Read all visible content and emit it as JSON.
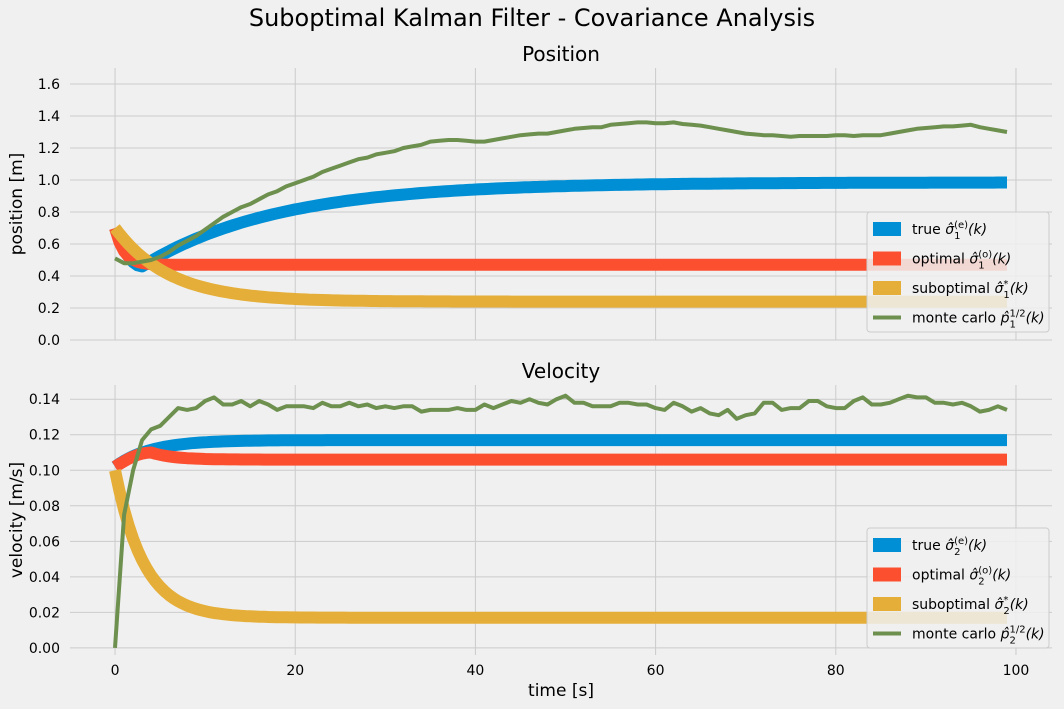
{
  "figure": {
    "suptitle": "Suboptimal Kalman Filter - Covariance Analysis"
  },
  "chart_data": [
    {
      "type": "line",
      "title": "Position",
      "xlabel": "",
      "ylabel": "position [m]",
      "xlim": [
        -5,
        104
      ],
      "ylim": [
        0,
        1.7
      ],
      "x_ticks": [
        0,
        20,
        40,
        60,
        80,
        100
      ],
      "x_tick_labels": [
        "",
        "",
        "",
        "",
        "",
        ""
      ],
      "y_ticks": [
        0.0,
        0.2,
        0.4,
        0.6,
        0.8,
        1.0,
        1.2,
        1.4,
        1.6
      ],
      "y_tick_labels": [
        "0.0",
        "0.2",
        "0.4",
        "0.6",
        "0.8",
        "1.0",
        "1.2",
        "1.4",
        "1.6"
      ],
      "grid": true,
      "legend_position": "lower-right",
      "series": [
        {
          "name": "true",
          "color": "#008fd5",
          "marker": "bar",
          "model": {
            "kind": "rise",
            "start": 0.7,
            "min": 0.46,
            "t_min": 3,
            "final": 0.985,
            "tau": 15,
            "t_end": 99
          },
          "legend_label": {
            "prefix": "true ",
            "base": "σ",
            "hat": true,
            "sub": "1",
            "sup": "(e)",
            "suffix": "(k)"
          }
        },
        {
          "name": "optimal",
          "color": "#fc4f30",
          "marker": "bar",
          "model": {
            "kind": "decay",
            "start": 0.7,
            "final": 0.47,
            "tau": 1.0,
            "t_end": 99
          },
          "legend_label": {
            "prefix": "optimal ",
            "base": "σ",
            "hat": true,
            "sub": "1",
            "sup": "(o)",
            "suffix": "(k)"
          }
        },
        {
          "name": "suboptimal",
          "color": "#e5ae38",
          "marker": "bar",
          "model": {
            "kind": "decay",
            "start": 0.7,
            "final": 0.24,
            "tau": 6,
            "t_end": 99
          },
          "legend_label": {
            "prefix": "suboptimal ",
            "base": "σ",
            "hat": true,
            "sub": "1",
            "sup": "*",
            "suffix": "(k)"
          }
        },
        {
          "name": "monte carlo",
          "color": "#6d904f",
          "marker": "line",
          "x": [
            0,
            1,
            2,
            3,
            4,
            5,
            6,
            7,
            8,
            9,
            10,
            11,
            12,
            13,
            14,
            15,
            16,
            17,
            18,
            19,
            20,
            21,
            22,
            23,
            24,
            25,
            26,
            27,
            28,
            29,
            30,
            31,
            32,
            33,
            34,
            35,
            36,
            37,
            38,
            39,
            40,
            41,
            42,
            43,
            44,
            45,
            46,
            47,
            48,
            49,
            50,
            51,
            52,
            53,
            54,
            55,
            56,
            57,
            58,
            59,
            60,
            61,
            62,
            63,
            64,
            65,
            66,
            67,
            68,
            69,
            70,
            71,
            72,
            73,
            74,
            75,
            76,
            77,
            78,
            79,
            80,
            81,
            82,
            83,
            84,
            85,
            86,
            87,
            88,
            89,
            90,
            91,
            92,
            93,
            94,
            95,
            96,
            97,
            98,
            99
          ],
          "y": [
            0.51,
            0.48,
            0.48,
            0.49,
            0.5,
            0.52,
            0.55,
            0.59,
            0.62,
            0.65,
            0.69,
            0.73,
            0.77,
            0.8,
            0.83,
            0.85,
            0.88,
            0.91,
            0.93,
            0.96,
            0.98,
            1.0,
            1.02,
            1.05,
            1.07,
            1.09,
            1.11,
            1.13,
            1.14,
            1.16,
            1.17,
            1.18,
            1.2,
            1.21,
            1.22,
            1.24,
            1.245,
            1.25,
            1.25,
            1.245,
            1.24,
            1.24,
            1.25,
            1.26,
            1.27,
            1.28,
            1.285,
            1.29,
            1.29,
            1.3,
            1.31,
            1.32,
            1.325,
            1.33,
            1.33,
            1.345,
            1.35,
            1.355,
            1.36,
            1.36,
            1.355,
            1.355,
            1.36,
            1.35,
            1.345,
            1.34,
            1.33,
            1.32,
            1.31,
            1.3,
            1.29,
            1.285,
            1.28,
            1.28,
            1.275,
            1.27,
            1.275,
            1.275,
            1.275,
            1.275,
            1.28,
            1.28,
            1.275,
            1.28,
            1.28,
            1.28,
            1.29,
            1.3,
            1.31,
            1.32,
            1.325,
            1.33,
            1.335,
            1.335,
            1.34,
            1.345,
            1.33,
            1.32,
            1.31,
            1.3
          ],
          "legend_label": {
            "prefix": "monte carlo ",
            "base": "p",
            "hat": true,
            "sub": "1",
            "sup": "1/2",
            "suffix": "(k)"
          }
        }
      ]
    },
    {
      "type": "line",
      "title": "Velocity",
      "xlabel": "time [s]",
      "ylabel": "velocity [m/s]",
      "xlim": [
        -5,
        104
      ],
      "ylim": [
        -0.004,
        0.148
      ],
      "x_ticks": [
        0,
        20,
        40,
        60,
        80,
        100
      ],
      "x_tick_labels": [
        "0",
        "20",
        "40",
        "60",
        "80",
        "100"
      ],
      "y_ticks": [
        0.0,
        0.02,
        0.04,
        0.06,
        0.08,
        0.1,
        0.12,
        0.14
      ],
      "y_tick_labels": [
        "0.00",
        "0.02",
        "0.04",
        "0.06",
        "0.08",
        "0.10",
        "0.12",
        "0.14"
      ],
      "grid": true,
      "legend_position": "lower-right",
      "series": [
        {
          "name": "true",
          "color": "#008fd5",
          "marker": "bar",
          "model": {
            "kind": "decay",
            "start": 0.102,
            "final": 0.117,
            "tau": 4,
            "t_end": 99
          },
          "legend_label": {
            "prefix": "true ",
            "base": "σ",
            "hat": true,
            "sub": "2",
            "sup": "(e)",
            "suffix": "(k)"
          }
        },
        {
          "name": "optimal",
          "color": "#fc4f30",
          "marker": "bar",
          "model": {
            "kind": "bump",
            "start": 0.102,
            "peak": 0.11,
            "t_peak": 4,
            "final": 0.106,
            "tau": 2.5,
            "t_end": 99
          },
          "legend_label": {
            "prefix": "optimal ",
            "base": "σ",
            "hat": true,
            "sub": "2",
            "sup": "(o)",
            "suffix": "(k)"
          }
        },
        {
          "name": "suboptimal",
          "color": "#e5ae38",
          "marker": "bar",
          "model": {
            "kind": "decay",
            "start": 0.1,
            "final": 0.017,
            "tau": 3.2,
            "t_end": 99
          },
          "legend_label": {
            "prefix": "suboptimal ",
            "base": "σ",
            "hat": true,
            "sub": "2",
            "sup": "*",
            "suffix": "(k)"
          }
        },
        {
          "name": "monte carlo",
          "color": "#6d904f",
          "marker": "line",
          "x": [
            0,
            1,
            2,
            3,
            4,
            5,
            6,
            7,
            8,
            9,
            10,
            11,
            12,
            13,
            14,
            15,
            16,
            17,
            18,
            19,
            20,
            21,
            22,
            23,
            24,
            25,
            26,
            27,
            28,
            29,
            30,
            31,
            32,
            33,
            34,
            35,
            36,
            37,
            38,
            39,
            40,
            41,
            42,
            43,
            44,
            45,
            46,
            47,
            48,
            49,
            50,
            51,
            52,
            53,
            54,
            55,
            56,
            57,
            58,
            59,
            60,
            61,
            62,
            63,
            64,
            65,
            66,
            67,
            68,
            69,
            70,
            71,
            72,
            73,
            74,
            75,
            76,
            77,
            78,
            79,
            80,
            81,
            82,
            83,
            84,
            85,
            86,
            87,
            88,
            89,
            90,
            91,
            92,
            93,
            94,
            95,
            96,
            97,
            98,
            99
          ],
          "y": [
            0.0,
            0.075,
            0.1,
            0.117,
            0.123,
            0.125,
            0.13,
            0.135,
            0.134,
            0.135,
            0.139,
            0.141,
            0.137,
            0.137,
            0.139,
            0.136,
            0.139,
            0.137,
            0.134,
            0.136,
            0.136,
            0.136,
            0.135,
            0.138,
            0.136,
            0.136,
            0.138,
            0.136,
            0.137,
            0.135,
            0.136,
            0.135,
            0.136,
            0.136,
            0.133,
            0.134,
            0.134,
            0.134,
            0.135,
            0.134,
            0.134,
            0.137,
            0.135,
            0.137,
            0.139,
            0.138,
            0.14,
            0.138,
            0.137,
            0.14,
            0.142,
            0.138,
            0.138,
            0.136,
            0.136,
            0.136,
            0.138,
            0.138,
            0.137,
            0.137,
            0.135,
            0.134,
            0.138,
            0.136,
            0.133,
            0.135,
            0.132,
            0.131,
            0.134,
            0.129,
            0.131,
            0.132,
            0.138,
            0.138,
            0.134,
            0.135,
            0.135,
            0.139,
            0.139,
            0.136,
            0.135,
            0.135,
            0.139,
            0.141,
            0.137,
            0.137,
            0.138,
            0.14,
            0.142,
            0.141,
            0.141,
            0.138,
            0.138,
            0.137,
            0.138,
            0.136,
            0.133,
            0.134,
            0.136,
            0.134
          ],
          "legend_label": {
            "prefix": "monte carlo ",
            "base": "p",
            "hat": true,
            "sub": "2",
            "sup": "1/2",
            "suffix": "(k)"
          }
        }
      ]
    }
  ]
}
